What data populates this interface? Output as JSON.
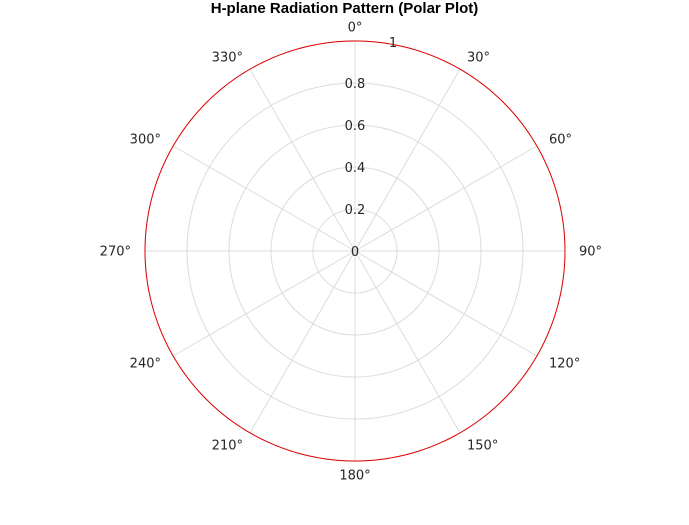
{
  "chart_data": {
    "type": "polar-line",
    "title": "H-plane Radiation Pattern (Polar Plot)",
    "theta_zero_location": "top",
    "theta_direction": "clockwise",
    "theta_ticks": [
      0,
      30,
      60,
      90,
      120,
      150,
      180,
      210,
      240,
      270,
      300,
      330
    ],
    "theta_tick_labels": [
      "0°",
      "30°",
      "60°",
      "90°",
      "120°",
      "150°",
      "180°",
      "210°",
      "240°",
      "270°",
      "300°",
      "330°"
    ],
    "r_ticks": [
      0,
      0.2,
      0.4,
      0.6,
      0.8,
      1
    ],
    "r_tick_labels": [
      "0",
      "0.2",
      "0.4",
      "0.6",
      "0.8",
      "1"
    ],
    "rlim": [
      0,
      1
    ],
    "grid": true,
    "series": [
      {
        "color": "#e00000",
        "theta": [
          0,
          30,
          60,
          90,
          120,
          150,
          180,
          210,
          240,
          270,
          300,
          330,
          360
        ],
        "r": [
          1,
          1,
          1,
          1,
          1,
          1,
          1,
          1,
          1,
          1,
          1,
          1,
          1
        ]
      }
    ]
  }
}
